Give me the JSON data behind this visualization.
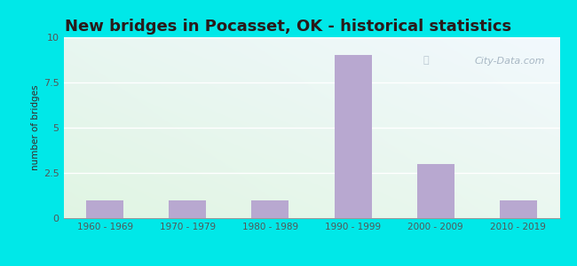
{
  "title": "New bridges in Pocasset, OK - historical statistics",
  "categories": [
    "1960 - 1969",
    "1970 - 1979",
    "1980 - 1989",
    "1990 - 1999",
    "2000 - 2009",
    "2010 - 2019"
  ],
  "values": [
    1,
    1,
    1,
    9,
    3,
    1
  ],
  "bar_color": "#b8a8d0",
  "ylabel": "number of bridges",
  "ylim": [
    0,
    10
  ],
  "yticks": [
    0,
    2.5,
    5,
    7.5,
    10
  ],
  "outer_bg_color": "#00e8e8",
  "title_fontsize": 13,
  "title_color": "#2a1a1a",
  "axis_label_color": "#3a2a2a",
  "tick_label_color": "#555555",
  "watermark_text": "City-Data.com",
  "watermark_color": "#a0b0be"
}
